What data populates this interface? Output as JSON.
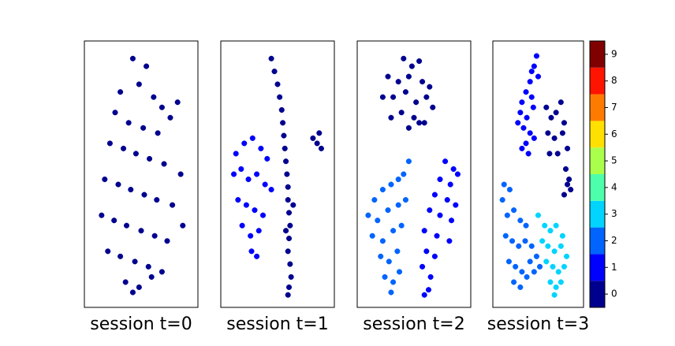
{
  "chart_data": [
    {
      "type": "scatter",
      "title": "session t=0",
      "xlim": [
        0,
        100
      ],
      "ylim": [
        0,
        100
      ],
      "series": [
        {
          "color": "#00008f",
          "x": [
            42,
            55,
            48,
            30,
            62,
            70,
            25,
            38,
            52,
            66,
            78,
            85,
            20,
            33,
            45,
            58,
            72,
            88,
            15,
            28,
            40,
            53,
            65,
            80,
            12,
            24,
            36,
            50,
            63,
            75,
            90,
            18,
            30,
            44,
            57,
            70,
            35,
            48,
            60,
            42
          ],
          "values": [
            95,
            92,
            85,
            82,
            80,
            76,
            74,
            70,
            68,
            66,
            72,
            78,
            62,
            60,
            58,
            56,
            54,
            50,
            48,
            46,
            44,
            42,
            40,
            38,
            34,
            32,
            30,
            28,
            26,
            24,
            30,
            20,
            18,
            16,
            14,
            12,
            8,
            6,
            10,
            4
          ]
        }
      ]
    },
    {
      "type": "scatter",
      "title": "session t=1",
      "xlim": [
        0,
        100
      ],
      "ylim": [
        0,
        100
      ],
      "series": [
        {
          "color": "#00008f",
          "x": [
            44,
            47,
            50,
            52,
            54,
            55,
            56,
            57,
            58,
            59,
            60,
            60,
            61,
            62,
            61,
            60,
            62,
            63,
            61,
            60,
            65,
            58,
            84,
            88,
            92,
            90
          ],
          "values": [
            95,
            90,
            85,
            80,
            75,
            70,
            65,
            60,
            55,
            50,
            45,
            40,
            35,
            30,
            25,
            20,
            15,
            10,
            6,
            3,
            38,
            28,
            64,
            62,
            60,
            66
          ]
        },
        {
          "color": "#0000ff",
          "x": [
            10,
            18,
            26,
            34,
            40,
            8,
            15,
            22,
            30,
            38,
            44,
            12,
            20,
            28,
            36,
            16,
            24,
            32,
            25,
            30
          ],
          "values": [
            58,
            62,
            64,
            60,
            56,
            50,
            52,
            48,
            50,
            46,
            44,
            40,
            38,
            36,
            34,
            30,
            26,
            28,
            20,
            18
          ]
        }
      ]
    },
    {
      "type": "scatter",
      "title": "session t=2",
      "xlim": [
        0,
        100
      ],
      "ylim": [
        0,
        100
      ],
      "series": [
        {
          "color": "#00008f",
          "x": [
            40,
            48,
            55,
            25,
            35,
            45,
            58,
            65,
            20,
            30,
            42,
            52,
            62,
            68,
            28,
            38,
            50,
            60,
            45,
            55
          ],
          "values": [
            95,
            92,
            94,
            88,
            86,
            88,
            86,
            84,
            80,
            80,
            82,
            78,
            80,
            76,
            72,
            74,
            72,
            70,
            68,
            70
          ]
        },
        {
          "color": "#0064ff",
          "x": [
            45,
            40,
            35,
            28,
            20,
            12,
            6,
            15,
            25,
            35,
            42,
            10,
            20,
            30,
            38,
            18,
            26,
            34,
            22,
            30,
            28,
            36
          ],
          "values": [
            55,
            50,
            48,
            46,
            44,
            40,
            34,
            32,
            36,
            38,
            40,
            26,
            24,
            28,
            30,
            18,
            16,
            20,
            10,
            8,
            4,
            12
          ]
        },
        {
          "color": "#0000ff",
          "x": [
            80,
            88,
            92,
            75,
            85,
            70,
            82,
            90,
            65,
            75,
            86,
            60,
            72,
            84,
            62,
            70,
            58,
            66,
            64,
            60
          ],
          "values": [
            55,
            52,
            50,
            48,
            46,
            42,
            40,
            38,
            36,
            34,
            32,
            28,
            26,
            24,
            20,
            18,
            14,
            10,
            5,
            3
          ]
        }
      ]
    },
    {
      "type": "scatter",
      "title": "session t=3",
      "xlim": [
        0,
        100
      ],
      "ylim": [
        0,
        100
      ],
      "series": [
        {
          "color": "#0000ff",
          "x": [
            48,
            45,
            50,
            40,
            35,
            30,
            42,
            28,
            36,
            44,
            32,
            40,
            25,
            35,
            45,
            30,
            38,
            42
          ],
          "values": [
            96,
            92,
            88,
            86,
            82,
            78,
            80,
            74,
            72,
            76,
            68,
            66,
            70,
            62,
            64,
            60,
            58,
            90
          ]
        },
        {
          "color": "#00008f",
          "x": [
            60,
            66,
            72,
            78,
            82,
            62,
            70,
            80,
            86,
            64,
            74,
            84,
            88,
            90,
            82,
            86
          ],
          "values": [
            76,
            72,
            74,
            78,
            70,
            66,
            64,
            66,
            60,
            58,
            58,
            52,
            48,
            44,
            42,
            46
          ]
        },
        {
          "color": "#0064ff",
          "x": [
            8,
            15,
            6,
            12,
            20,
            28,
            35,
            10,
            18,
            26,
            34,
            42,
            14,
            22,
            30,
            40,
            48,
            20,
            28,
            36,
            45,
            52
          ],
          "values": [
            46,
            44,
            40,
            34,
            36,
            32,
            30,
            26,
            24,
            22,
            24,
            22,
            16,
            14,
            12,
            16,
            18,
            8,
            6,
            10,
            12,
            14
          ]
        },
        {
          "color": "#00d4ff",
          "x": [
            50,
            58,
            65,
            72,
            80,
            55,
            62,
            70,
            78,
            85,
            60,
            68,
            75,
            82,
            65,
            72,
            70,
            78
          ],
          "values": [
            34,
            30,
            28,
            30,
            26,
            24,
            22,
            20,
            22,
            18,
            16,
            14,
            12,
            14,
            8,
            6,
            3,
            8
          ]
        }
      ]
    },
    {
      "type": "colorbar",
      "ylim": [
        -0.5,
        9.5
      ],
      "yticks": [
        0,
        1,
        2,
        3,
        4,
        5,
        6,
        7,
        8,
        9
      ],
      "colors": [
        "#00008f",
        "#0000ff",
        "#0064ff",
        "#00d4ff",
        "#4dffaa",
        "#aaff4d",
        "#ffe000",
        "#ff7b00",
        "#ff1400",
        "#800000"
      ]
    }
  ]
}
